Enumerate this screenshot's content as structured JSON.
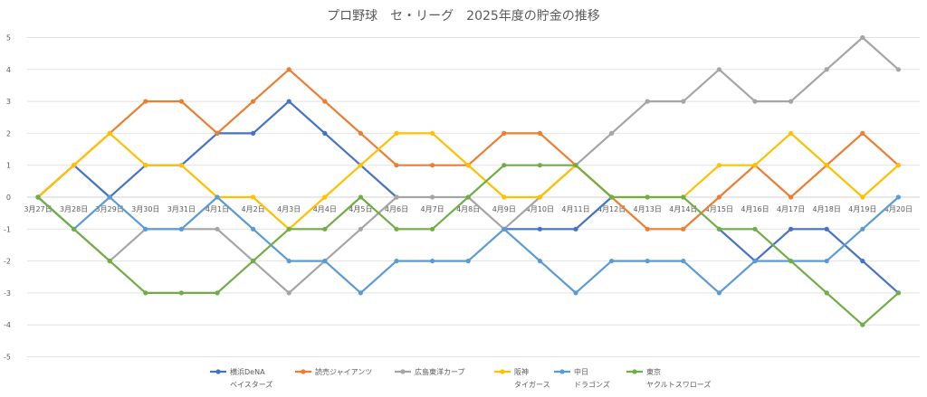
{
  "chart_data": {
    "type": "line",
    "title": "プロ野球　セ・リーグ　2025年度の貯金の推移",
    "xlabel": "",
    "ylabel": "",
    "ylim": [
      -5,
      5
    ],
    "yticks": [
      5,
      4,
      3,
      2,
      1,
      0,
      -1,
      -2,
      -3,
      -4,
      -5
    ],
    "grid": true,
    "legend_position": "bottom",
    "categories": [
      "3月27日",
      "3月28日",
      "3月29日",
      "3月30日",
      "3月31日",
      "4月1日",
      "4月2日",
      "4月3日",
      "4月4日",
      "4月5日",
      "4月6日",
      "4月7日",
      "4月8日",
      "4月9日",
      "4月10日",
      "4月11日",
      "4月12日",
      "4月13日",
      "4月14日",
      "4月15日",
      "4月16日",
      "4月17日",
      "4月18日",
      "4月19日",
      "4月20日"
    ],
    "series": [
      {
        "name": "横浜DeNA",
        "name2": "ベイスターズ",
        "color": "#4472C4",
        "values": [
          0,
          1,
          0,
          1,
          1,
          2,
          2,
          3,
          2,
          1,
          0,
          null,
          null,
          -1,
          -1,
          -1,
          0,
          null,
          null,
          -1,
          -2,
          -1,
          -1,
          -2,
          -3
        ]
      },
      {
        "name": "読売ジャイアンツ",
        "name2": "",
        "color": "#ED7D31",
        "values": [
          0,
          1,
          2,
          3,
          3,
          2,
          3,
          4,
          3,
          2,
          1,
          1,
          1,
          2,
          2,
          1,
          0,
          -1,
          -1,
          0,
          1,
          0,
          1,
          2,
          1
        ]
      },
      {
        "name": "広島東洋カープ",
        "name2": "",
        "color": "#A5A5A5",
        "values": [
          0,
          -1,
          -2,
          -1,
          -1,
          -1,
          -2,
          -3,
          -2,
          -1,
          0,
          0,
          0,
          -1,
          0,
          1,
          2,
          3,
          3,
          4,
          3,
          3,
          4,
          5,
          4
        ]
      },
      {
        "name": "阪神",
        "name2": "タイガース",
        "color": "#FFC000",
        "values": [
          0,
          1,
          2,
          1,
          1,
          0,
          0,
          -1,
          0,
          1,
          2,
          2,
          1,
          0,
          0,
          1,
          0,
          0,
          0,
          1,
          1,
          2,
          1,
          0,
          1
        ]
      },
      {
        "name": "中日",
        "name2": "ドラゴンズ",
        "color": "#5B9BD5",
        "values": [
          0,
          -1,
          0,
          -1,
          -1,
          0,
          -1,
          -2,
          -2,
          -3,
          -2,
          -2,
          -2,
          -1,
          -2,
          -3,
          -2,
          -2,
          -2,
          -3,
          -2,
          -2,
          -2,
          -1,
          0
        ]
      },
      {
        "name": "東京",
        "name2": "ヤクルトスワローズ",
        "color": "#70AD47",
        "values": [
          0,
          -1,
          -2,
          -3,
          -3,
          -3,
          -2,
          -1,
          -1,
          0,
          -1,
          -1,
          0,
          1,
          1,
          1,
          0,
          0,
          0,
          -1,
          -1,
          -2,
          -3,
          -4,
          -3
        ]
      }
    ]
  }
}
